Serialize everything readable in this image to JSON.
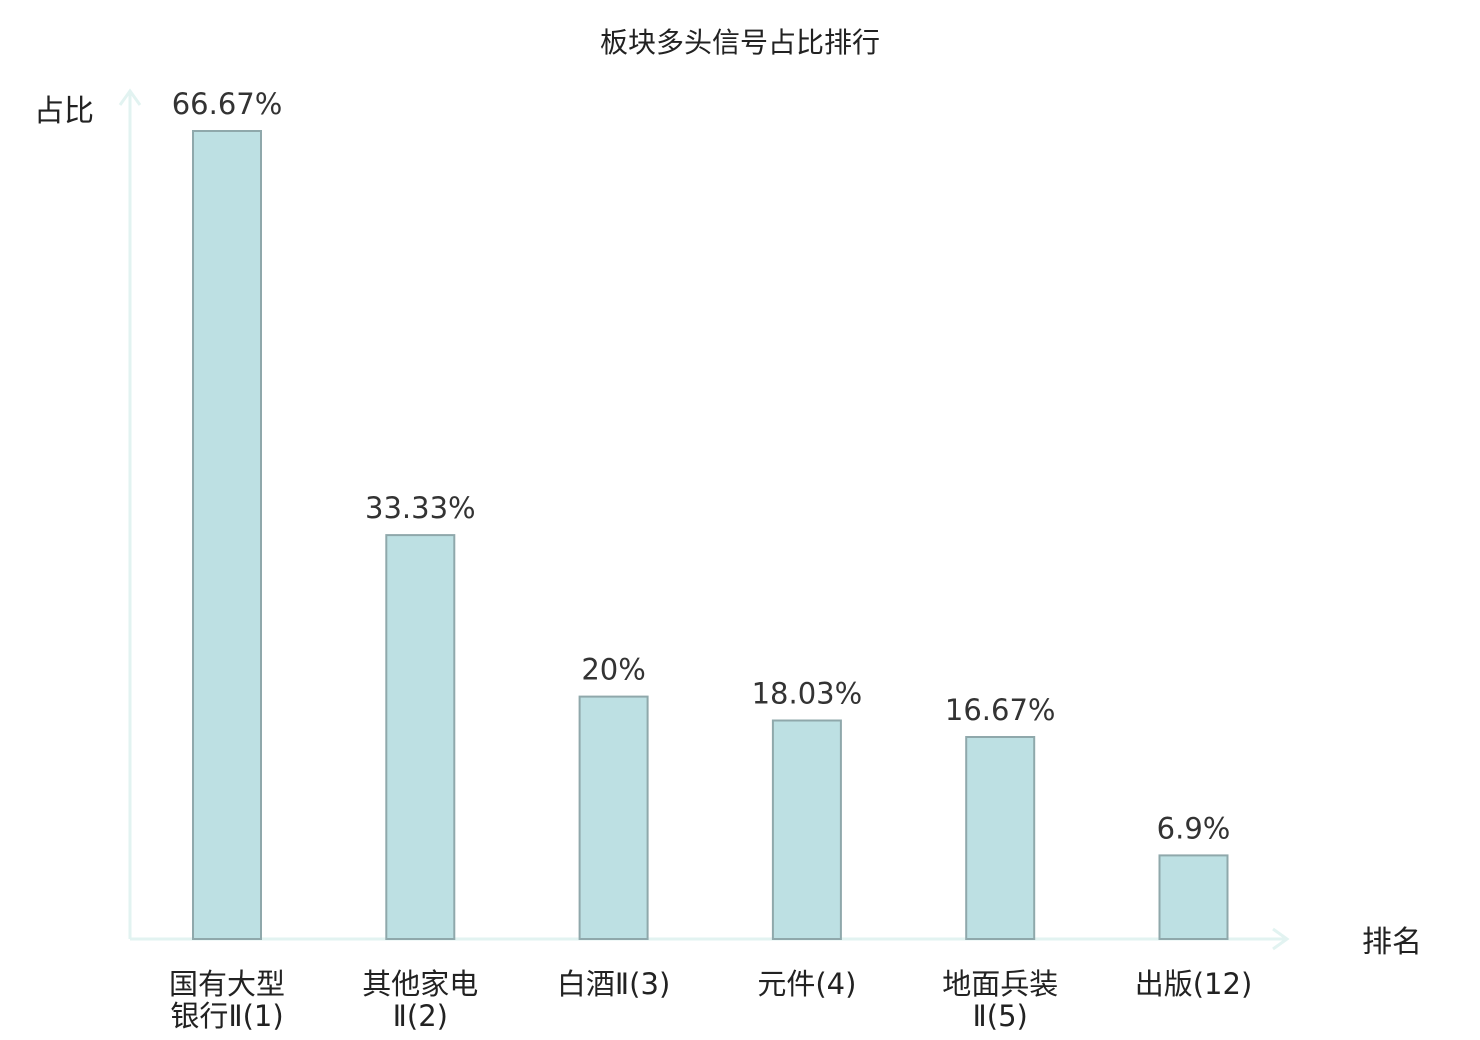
{
  "chart_data": {
    "type": "bar",
    "title": "板块多头信号占比排行",
    "xlabel": "排名",
    "ylabel": "占比",
    "categories": [
      [
        "国有大型",
        "银行Ⅱ(1)"
      ],
      [
        "其他家电",
        "Ⅱ(2)"
      ],
      [
        "白酒Ⅱ(3)"
      ],
      [
        "元件(4)"
      ],
      [
        "地面兵装",
        "Ⅱ(5)"
      ],
      [
        "出版(12)"
      ]
    ],
    "values": [
      66.67,
      33.33,
      20,
      18.03,
      16.67,
      6.9
    ],
    "value_labels": [
      "66.67%",
      "33.33%",
      "20%",
      "18.03%",
      "16.67%",
      "6.9%"
    ],
    "highlight_index": 5,
    "ylim": [
      0,
      66.67
    ],
    "grid": false,
    "legend": "none"
  },
  "colors": {
    "bar_fill": "#bde0e3",
    "bar_stroke": "#8fa8ab",
    "axis": "#e2f3f1",
    "text": "#222222",
    "value_text": "#333333",
    "highlight_text": "#e60012"
  }
}
